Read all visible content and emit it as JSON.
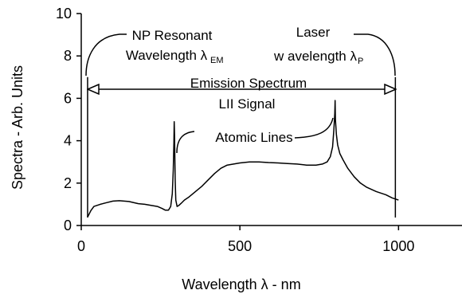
{
  "chart_data": {
    "type": "line",
    "xlabel": "Wavelength λ - nm",
    "ylabel": "Spectra - Arb. Units",
    "xlim": [
      0,
      1200
    ],
    "ylim": [
      0,
      10
    ],
    "x_ticks": [
      "0",
      "500",
      "1000"
    ],
    "y_ticks": [
      "0",
      "2",
      "4",
      "6",
      "8",
      "10"
    ],
    "grid": false,
    "legend": "none",
    "series": [
      {
        "x": [
          20,
          30,
          40,
          60,
          80,
          100,
          120,
          150,
          180,
          200,
          220,
          240,
          255,
          265,
          275,
          282,
          287,
          290,
          292,
          293,
          294,
          296,
          298,
          302,
          308,
          315,
          325,
          340,
          360,
          380,
          400,
          420,
          440,
          460,
          480,
          500,
          530,
          560,
          590,
          620,
          650,
          680,
          710,
          740,
          760,
          775,
          785,
          792,
          796,
          799,
          800,
          801,
          804,
          808,
          815,
          825,
          840,
          860,
          880,
          900,
          930,
          960,
          980,
          1000
        ],
        "y": [
          0.4,
          0.7,
          0.9,
          1.0,
          1.08,
          1.15,
          1.17,
          1.13,
          1.03,
          1.0,
          0.95,
          0.9,
          0.8,
          0.72,
          0.72,
          0.9,
          1.5,
          2.6,
          3.9,
          4.9,
          4.3,
          2.2,
          1.2,
          0.9,
          0.95,
          1.05,
          1.2,
          1.35,
          1.6,
          1.85,
          2.15,
          2.45,
          2.7,
          2.85,
          2.9,
          2.95,
          3.0,
          3.0,
          2.97,
          2.95,
          2.92,
          2.9,
          2.85,
          2.85,
          2.9,
          3.0,
          3.25,
          3.7,
          4.5,
          5.3,
          5.9,
          5.0,
          4.3,
          3.8,
          3.4,
          3.1,
          2.7,
          2.3,
          2.0,
          1.8,
          1.6,
          1.45,
          1.3,
          1.2
        ]
      }
    ],
    "vlines": [
      {
        "x": 20,
        "y_top": 7.0
      },
      {
        "x": 990,
        "y_top": 7.0
      }
    ],
    "annotations": {
      "np_resonant": {
        "line1": "NP Resonant",
        "line2": "Wavelength λ",
        "subscript": "EM"
      },
      "laser": {
        "line1": "Laser",
        "line2": "w avelength λ",
        "subscript": "P"
      },
      "emission": {
        "line1": "Emission Spectrum",
        "line2": "LII Signal"
      },
      "atomic_lines": "Atomic Lines"
    }
  }
}
